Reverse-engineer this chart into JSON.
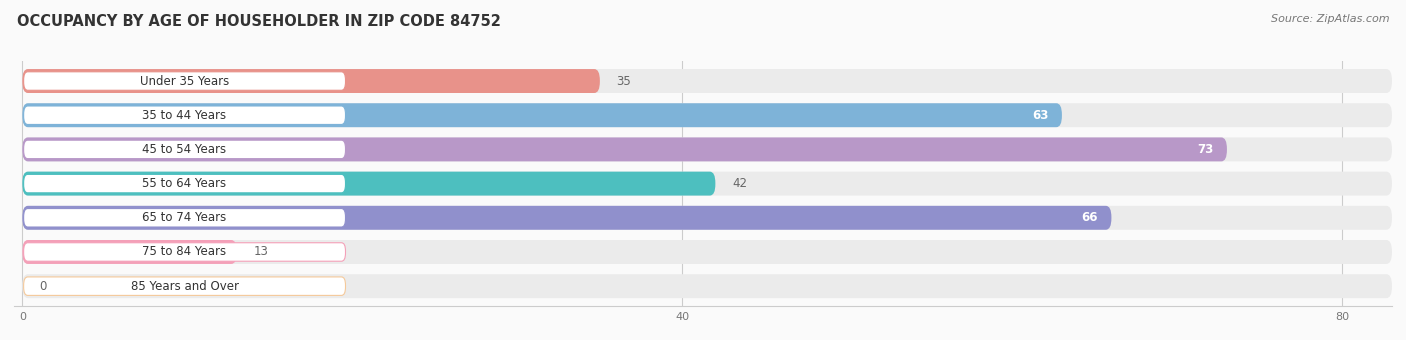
{
  "title": "OCCUPANCY BY AGE OF HOUSEHOLDER IN ZIP CODE 84752",
  "source": "Source: ZipAtlas.com",
  "categories": [
    "Under 35 Years",
    "35 to 44 Years",
    "45 to 54 Years",
    "55 to 64 Years",
    "65 to 74 Years",
    "75 to 84 Years",
    "85 Years and Over"
  ],
  "values": [
    35,
    63,
    73,
    42,
    66,
    13,
    0
  ],
  "bar_colors": [
    "#E8928A",
    "#7EB3D8",
    "#B898C8",
    "#4DBFBF",
    "#9090CC",
    "#F4A0B8",
    "#F5C99A"
  ],
  "bar_bg_color": "#EBEBEB",
  "value_inside_color": "#FFFFFF",
  "value_outside_color": "#666666",
  "inside_threshold": 50,
  "xlim_max": 83,
  "xticks": [
    0,
    40,
    80
  ],
  "title_fontsize": 10.5,
  "source_fontsize": 8,
  "label_fontsize": 8.5,
  "value_fontsize": 8.5,
  "figsize": [
    14.06,
    3.4
  ],
  "dpi": 100,
  "bg_color": "#FAFAFA"
}
